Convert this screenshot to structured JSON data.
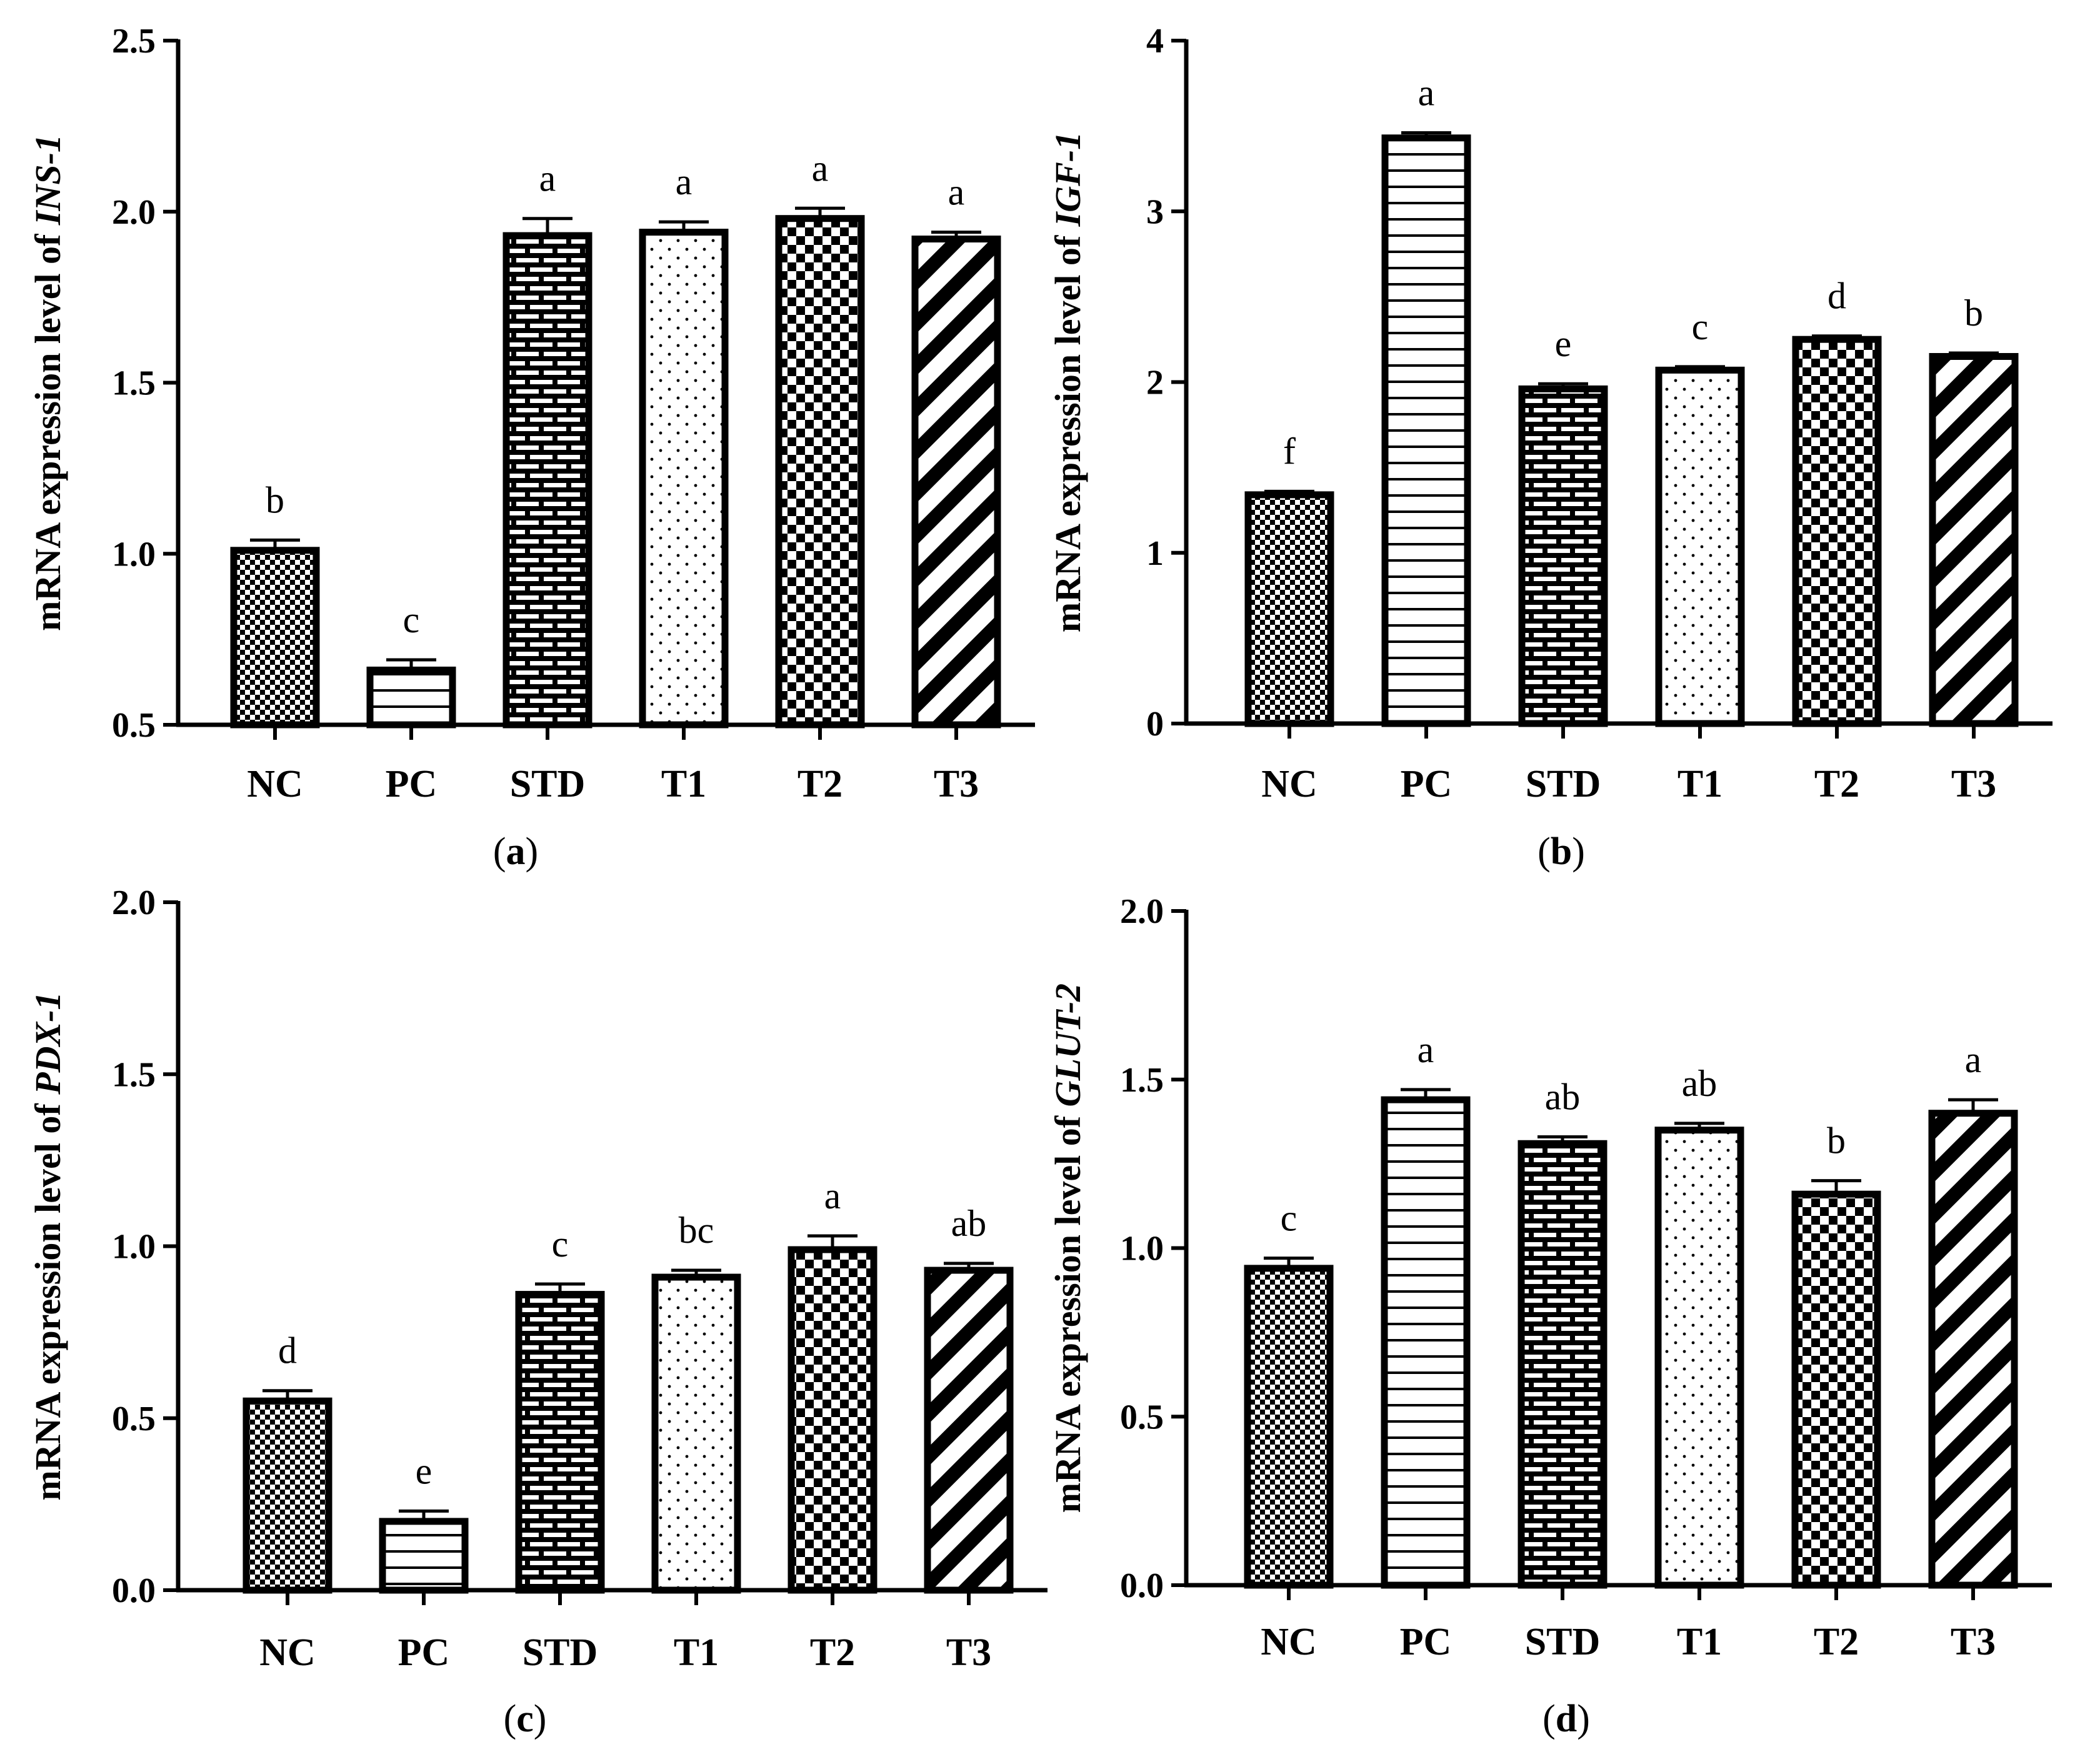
{
  "chart_data": [
    {
      "type": "bar",
      "panel": "a",
      "ylabel_prefix": "mRNA expression level of ",
      "gene": "INS-1",
      "categories": [
        "NC",
        "PC",
        "STD",
        "T1",
        "T2",
        "T3"
      ],
      "values": [
        1.01,
        0.66,
        1.93,
        1.94,
        1.98,
        1.92
      ],
      "errors": [
        0.03,
        0.03,
        0.05,
        0.03,
        0.03,
        0.02
      ],
      "significance": [
        "b",
        "c",
        "a",
        "a",
        "a",
        "a"
      ],
      "ylim": [
        0.5,
        2.5
      ],
      "yticks": [
        "0.5",
        "1.0",
        "1.5",
        "2.0",
        "2.5"
      ]
    },
    {
      "type": "bar",
      "panel": "b",
      "ylabel_prefix": "mRNA expression level of ",
      "gene": "IGF-1",
      "categories": [
        "NC",
        "PC",
        "STD",
        "T1",
        "T2",
        "T3"
      ],
      "values": [
        1.34,
        3.43,
        1.96,
        2.07,
        2.25,
        2.15
      ],
      "errors": [
        0.02,
        0.03,
        0.03,
        0.02,
        0.02,
        0.02
      ],
      "significance": [
        "f",
        "a",
        "e",
        "c",
        "d",
        "b"
      ],
      "ylim": [
        0,
        4
      ],
      "yticks": [
        "0",
        "1",
        "2",
        "3",
        "4"
      ]
    },
    {
      "type": "bar",
      "panel": "c",
      "ylabel_prefix": "mRNA expression level of ",
      "gene": "PDX-1",
      "categories": [
        "NC",
        "PC",
        "STD",
        "T1",
        "T2",
        "T3"
      ],
      "values": [
        0.55,
        0.2,
        0.86,
        0.91,
        0.99,
        0.93
      ],
      "errors": [
        0.03,
        0.03,
        0.03,
        0.02,
        0.04,
        0.02
      ],
      "significance": [
        "d",
        "e",
        "c",
        "bc",
        "a",
        "ab"
      ],
      "ylim": [
        0,
        2.0
      ],
      "yticks": [
        "0.0",
        "0.5",
        "1.0",
        "1.5",
        "2.0"
      ]
    },
    {
      "type": "bar",
      "panel": "d",
      "ylabel_prefix": "mRNA expression level of ",
      "gene": "GLUT-2",
      "categories": [
        "NC",
        "PC",
        "STD",
        "T1",
        "T2",
        "T3"
      ],
      "values": [
        0.94,
        1.44,
        1.31,
        1.35,
        1.16,
        1.4
      ],
      "errors": [
        0.03,
        0.03,
        0.02,
        0.02,
        0.04,
        0.04
      ],
      "significance": [
        "c",
        "a",
        "ab",
        "ab",
        "b",
        "a"
      ],
      "ylim": [
        0,
        2.0
      ],
      "yticks": [
        "0.0",
        "0.5",
        "1.0",
        "1.5",
        "2.0"
      ]
    }
  ]
}
